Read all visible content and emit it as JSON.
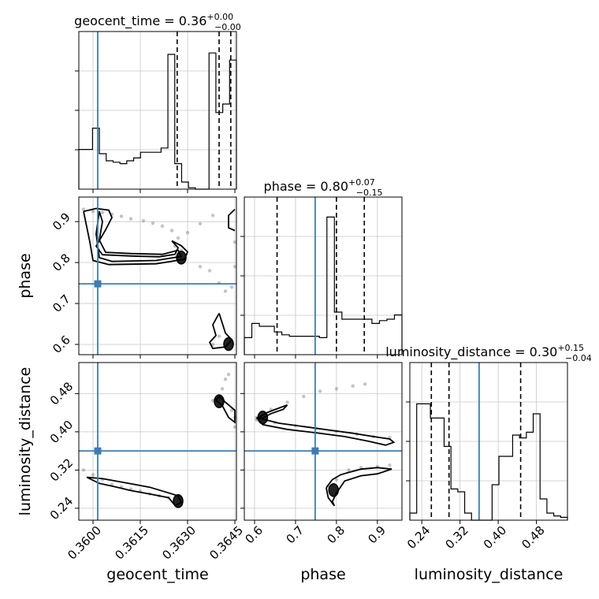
{
  "chart_data": {
    "type": "corner",
    "parameters": [
      "geocent_time",
      "phase",
      "luminosity_distance"
    ],
    "axis_labels": {
      "geocent_time": "geocent_time",
      "phase": "phase",
      "luminosity_distance": "luminosity_distance"
    },
    "ranges": {
      "geocent_time": [
        0.35955,
        0.36455
      ],
      "phase": [
        0.575,
        0.96
      ],
      "luminosity_distance": [
        0.215,
        0.545
      ]
    },
    "ticks": {
      "geocent_time": [
        {
          "v": 0.36,
          "label": "0.3600"
        },
        {
          "v": 0.3615,
          "label": "0.3615"
        },
        {
          "v": 0.363,
          "label": "0.3630"
        },
        {
          "v": 0.3645,
          "label": "0.3645"
        }
      ],
      "phase": [
        {
          "v": 0.6,
          "label": "0.6"
        },
        {
          "v": 0.7,
          "label": "0.7"
        },
        {
          "v": 0.8,
          "label": "0.8"
        },
        {
          "v": 0.9,
          "label": "0.9"
        }
      ],
      "luminosity_distance": [
        {
          "v": 0.24,
          "label": "0.24"
        },
        {
          "v": 0.32,
          "label": "0.32"
        },
        {
          "v": 0.4,
          "label": "0.40"
        },
        {
          "v": 0.48,
          "label": "0.48"
        }
      ]
    },
    "titles": {
      "geocent_time": {
        "base": "geocent_time = 0.36",
        "plus": "+0.00",
        "minus": "−0.00"
      },
      "phase": {
        "base": "phase = 0.80",
        "plus": "+0.07",
        "minus": "−0.15"
      },
      "luminosity_distance": {
        "base": "luminosity_distance = 0.30",
        "plus": "+0.15",
        "minus": "−0.04"
      }
    },
    "truths": {
      "geocent_time": 0.36015,
      "phase": 0.748,
      "luminosity_distance": 0.36
    },
    "quantiles": {
      "geocent_time": [
        0.36267,
        0.364,
        0.36437
      ],
      "phase": [
        0.655,
        0.8,
        0.868
      ],
      "luminosity_distance": [
        0.26,
        0.297,
        0.447
      ]
    },
    "histograms": {
      "geocent_time": {
        "range": [
          0.35955,
          0.36455
        ],
        "counts": [
          0.28,
          0.28,
          0.43,
          0.25,
          0.2,
          0.19,
          0.18,
          0.2,
          0.22,
          0.26,
          0.26,
          0.26,
          0.29,
          0.95,
          0.18,
          0.05,
          0.01,
          0.0,
          0.0,
          0.96,
          0.54,
          0.6,
          0.91
        ]
      },
      "phase": {
        "range": [
          0.575,
          0.96
        ],
        "counts": [
          0.12,
          0.22,
          0.2,
          0.2,
          0.16,
          0.14,
          0.13,
          0.13,
          0.13,
          0.13,
          0.12,
          0.97,
          0.3,
          0.25,
          0.25,
          0.25,
          0.25,
          0.22,
          0.24,
          0.25,
          0.28
        ]
      },
      "luminosity_distance": {
        "range": [
          0.215,
          0.545
        ],
        "counts": [
          0.05,
          0.82,
          0.82,
          0.72,
          0.72,
          0.52,
          0.22,
          0.2,
          0.05,
          0.0,
          0.0,
          0.0,
          0.25,
          0.45,
          0.45,
          0.6,
          0.58,
          0.62,
          0.75,
          0.15,
          0.05,
          0.03,
          0.02
        ]
      }
    },
    "samples_2d": [
      {
        "x": "geocent_time",
        "y": "phase",
        "points": [
          [
            0.3597,
            0.93
          ],
          [
            0.36,
            0.925
          ],
          [
            0.3603,
            0.922
          ],
          [
            0.3606,
            0.918
          ],
          [
            0.3609,
            0.913
          ],
          [
            0.3612,
            0.907
          ],
          [
            0.3616,
            0.902
          ],
          [
            0.3619,
            0.896
          ],
          [
            0.3622,
            0.889
          ],
          [
            0.3625,
            0.878
          ],
          [
            0.3627,
            0.86
          ],
          [
            0.3626,
            0.84
          ],
          [
            0.3628,
            0.83
          ],
          [
            0.363,
            0.873
          ],
          [
            0.3634,
            0.895
          ],
          [
            0.3638,
            0.915
          ],
          [
            0.3634,
            0.79
          ],
          [
            0.3637,
            0.78
          ],
          [
            0.364,
            0.75
          ],
          [
            0.3642,
            0.73
          ],
          [
            0.3644,
            0.74
          ],
          [
            0.3645,
            0.79
          ],
          [
            0.3645,
            0.85
          ],
          [
            0.364,
            0.62
          ],
          [
            0.3638,
            0.6
          ]
        ],
        "contours": [
          [
            [
              0.3597,
              0.925
            ],
            [
              0.3601,
              0.932
            ],
            [
              0.3605,
              0.928
            ],
            [
              0.3606,
              0.91
            ],
            [
              0.3604,
              0.88
            ],
            [
              0.3601,
              0.84
            ],
            [
              0.3603,
              0.819
            ],
            [
              0.3612,
              0.816
            ],
            [
              0.3621,
              0.814
            ],
            [
              0.3626,
              0.82
            ],
            [
              0.3627,
              0.836
            ],
            [
              0.3625,
              0.853
            ],
            [
              0.3628,
              0.841
            ],
            [
              0.363,
              0.826
            ],
            [
              0.3629,
              0.808
            ],
            [
              0.362,
              0.797
            ],
            [
              0.3605,
              0.795
            ],
            [
              0.36,
              0.805
            ],
            [
              0.3599,
              0.85
            ],
            [
              0.3597,
              0.925
            ]
          ],
          [
            [
              0.3602,
              0.925
            ],
            [
              0.3603,
              0.9
            ],
            [
              0.3602,
              0.855
            ],
            [
              0.3604,
              0.825
            ],
            [
              0.3612,
              0.822
            ],
            [
              0.3622,
              0.82
            ],
            [
              0.3627,
              0.83
            ],
            [
              0.3628,
              0.815
            ],
            [
              0.362,
              0.805
            ],
            [
              0.3606,
              0.803
            ],
            [
              0.3602,
              0.812
            ],
            [
              0.3601,
              0.87
            ],
            [
              0.3602,
              0.925
            ]
          ],
          [
            [
              0.364,
              0.676
            ],
            [
              0.3641,
              0.652
            ],
            [
              0.3642,
              0.628
            ],
            [
              0.3644,
              0.611
            ],
            [
              0.3642,
              0.594
            ],
            [
              0.3638,
              0.59
            ],
            [
              0.3637,
              0.605
            ],
            [
              0.3639,
              0.622
            ],
            [
              0.3638,
              0.648
            ],
            [
              0.364,
              0.676
            ]
          ],
          [
            [
              0.3645,
              0.93
            ],
            [
              0.3643,
              0.915
            ],
            [
              0.3643,
              0.885
            ],
            [
              0.3645,
              0.878
            ]
          ]
        ],
        "filled": [
          {
            "x": 0.3628,
            "y": 0.812
          },
          {
            "x": 0.3643,
            "y": 0.601
          }
        ]
      },
      {
        "x": "geocent_time",
        "y": "luminosity_distance",
        "points": [
          [
            0.3597,
            0.32
          ],
          [
            0.36,
            0.31
          ],
          [
            0.3603,
            0.3
          ],
          [
            0.3606,
            0.29
          ],
          [
            0.3609,
            0.285
          ],
          [
            0.3612,
            0.28
          ],
          [
            0.3615,
            0.276
          ],
          [
            0.3618,
            0.27
          ],
          [
            0.3621,
            0.266
          ],
          [
            0.3624,
            0.262
          ],
          [
            0.3626,
            0.255
          ],
          [
            0.3628,
            0.246
          ],
          [
            0.3638,
            0.465
          ],
          [
            0.364,
            0.475
          ],
          [
            0.3641,
            0.49
          ],
          [
            0.3642,
            0.51
          ],
          [
            0.3643,
            0.52
          ],
          [
            0.3644,
            0.445
          ],
          [
            0.3645,
            0.43
          ],
          [
            0.3645,
            0.41
          ]
        ],
        "contours": [
          [
            [
              0.3598,
              0.305
            ],
            [
              0.3603,
              0.302
            ],
            [
              0.3608,
              0.296
            ],
            [
              0.3613,
              0.29
            ],
            [
              0.3618,
              0.284
            ],
            [
              0.3623,
              0.274
            ],
            [
              0.3627,
              0.266
            ],
            [
              0.3628,
              0.252
            ],
            [
              0.3626,
              0.246
            ],
            [
              0.3624,
              0.262
            ],
            [
              0.3618,
              0.27
            ],
            [
              0.3612,
              0.277
            ],
            [
              0.3607,
              0.285
            ],
            [
              0.3602,
              0.292
            ],
            [
              0.3598,
              0.305
            ]
          ],
          [
            [
              0.3639,
              0.466
            ],
            [
              0.364,
              0.474
            ],
            [
              0.3642,
              0.462
            ],
            [
              0.3645,
              0.445
            ],
            [
              0.3645,
              0.42
            ],
            [
              0.3643,
              0.43
            ],
            [
              0.3641,
              0.455
            ],
            [
              0.3639,
              0.466
            ]
          ]
        ],
        "filled": [
          {
            "x": 0.3627,
            "y": 0.255
          },
          {
            "x": 0.364,
            "y": 0.464
          }
        ]
      },
      {
        "x": "phase",
        "y": "luminosity_distance",
        "points": [
          [
            0.605,
            0.43
          ],
          [
            0.64,
            0.447
          ],
          [
            0.68,
            0.462
          ],
          [
            0.72,
            0.474
          ],
          [
            0.76,
            0.485
          ],
          [
            0.8,
            0.49
          ],
          [
            0.84,
            0.496
          ],
          [
            0.87,
            0.5
          ],
          [
            0.605,
            0.425
          ],
          [
            0.65,
            0.419
          ],
          [
            0.7,
            0.413
          ],
          [
            0.75,
            0.407
          ],
          [
            0.8,
            0.401
          ],
          [
            0.85,
            0.395
          ],
          [
            0.89,
            0.39
          ],
          [
            0.93,
            0.388
          ],
          [
            0.78,
            0.285
          ],
          [
            0.8,
            0.3
          ],
          [
            0.83,
            0.32
          ],
          [
            0.86,
            0.325
          ],
          [
            0.9,
            0.327
          ],
          [
            0.93,
            0.33
          ]
        ],
        "contours": [
          [
            [
              0.605,
              0.427
            ],
            [
              0.63,
              0.44
            ],
            [
              0.66,
              0.45
            ],
            [
              0.68,
              0.456
            ],
            [
              0.67,
              0.447
            ],
            [
              0.64,
              0.438
            ],
            [
              0.62,
              0.429
            ],
            [
              0.605,
              0.427
            ]
          ],
          [
            [
              0.605,
              0.43
            ],
            [
              0.66,
              0.418
            ],
            [
              0.72,
              0.411
            ],
            [
              0.78,
              0.404
            ],
            [
              0.84,
              0.397
            ],
            [
              0.89,
              0.39
            ],
            [
              0.93,
              0.385
            ],
            [
              0.94,
              0.378
            ],
            [
              0.92,
              0.372
            ],
            [
              0.88,
              0.38
            ],
            [
              0.82,
              0.39
            ],
            [
              0.75,
              0.398
            ],
            [
              0.68,
              0.405
            ],
            [
              0.62,
              0.415
            ],
            [
              0.605,
              0.43
            ]
          ],
          [
            [
              0.775,
              0.283
            ],
            [
              0.79,
              0.3
            ],
            [
              0.81,
              0.31
            ],
            [
              0.83,
              0.315
            ],
            [
              0.86,
              0.322
            ],
            [
              0.9,
              0.325
            ],
            [
              0.935,
              0.322
            ],
            [
              0.9,
              0.312
            ],
            [
              0.86,
              0.308
            ],
            [
              0.82,
              0.297
            ],
            [
              0.8,
              0.272
            ],
            [
              0.79,
              0.254
            ],
            [
              0.795,
              0.245
            ],
            [
              0.78,
              0.262
            ],
            [
              0.775,
              0.283
            ]
          ]
        ],
        "filled": [
          {
            "x": 0.793,
            "y": 0.278
          },
          {
            "x": 0.62,
            "y": 0.43
          }
        ]
      }
    ]
  }
}
